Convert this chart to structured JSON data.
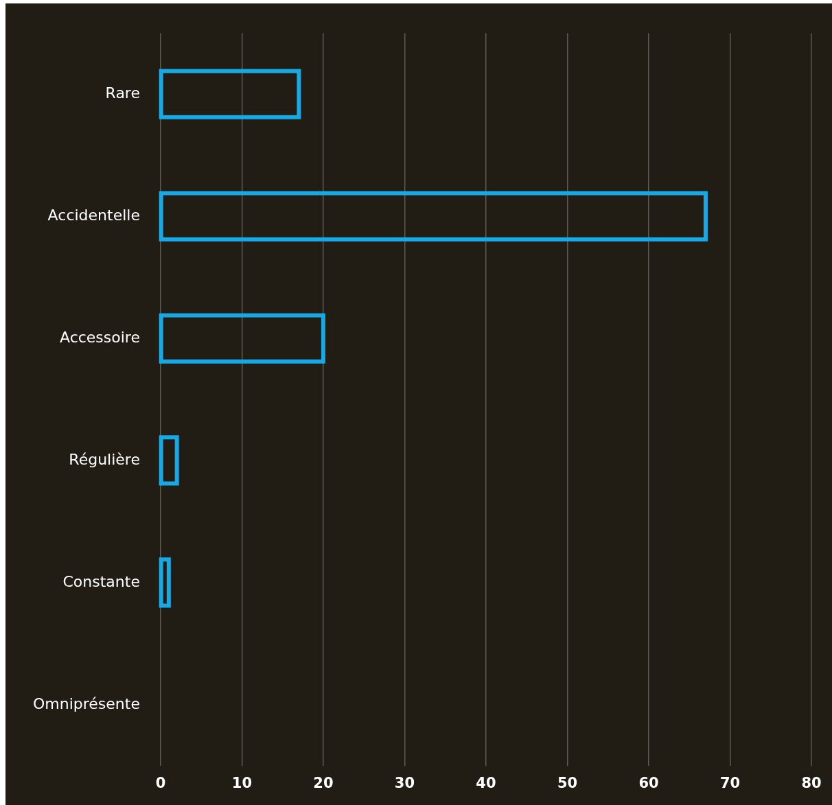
{
  "chart_data": {
    "type": "bar",
    "orientation": "horizontal",
    "categories": [
      "Rare",
      "Accidentelle",
      "Accessoire",
      "Régulière",
      "Constante",
      "Omniprésente"
    ],
    "values": [
      17,
      67,
      20,
      2,
      1,
      0
    ],
    "color": "#16a9e6",
    "xlim": [
      0,
      80
    ],
    "xticks": [
      0,
      10,
      20,
      30,
      40,
      50,
      60,
      70,
      80
    ],
    "grid": "x",
    "legend": false
  }
}
